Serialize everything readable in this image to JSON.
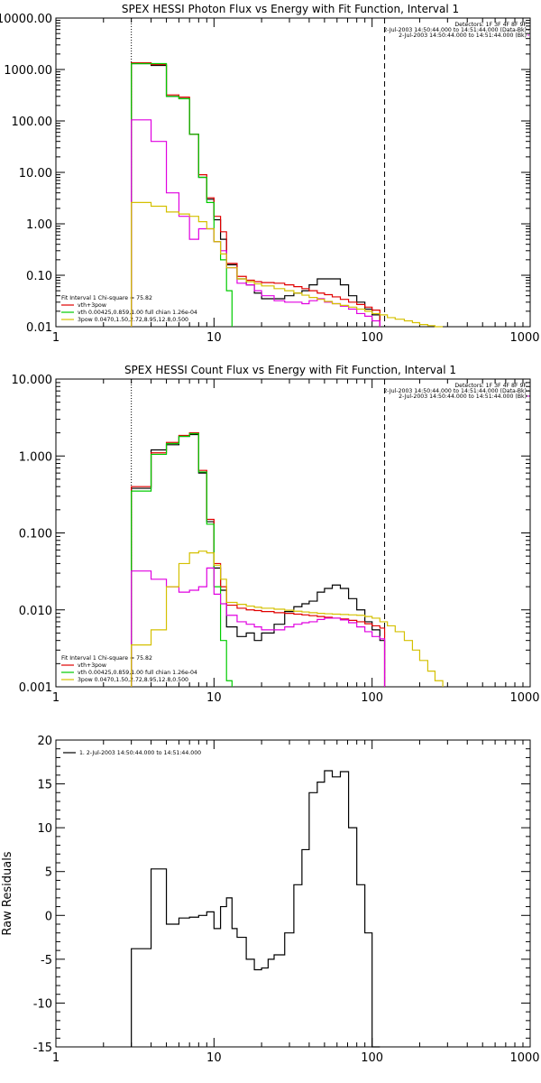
{
  "chart_data": [
    {
      "type": "line",
      "title": "SPEX HESSI Photon Flux vs Energy with Fit Function, Interval 1",
      "xlabel": "",
      "ylabel": "",
      "xscale": "log",
      "yscale": "log",
      "xlim": [
        1,
        1000
      ],
      "ylim": [
        0.01,
        10000
      ],
      "xticks": [
        "1",
        "10",
        "100",
        "1000"
      ],
      "yticks": [
        "0.01",
        "0.10",
        "1.00",
        "10.00",
        "100.00",
        "1000.00",
        "10000.00"
      ],
      "vlines": [
        {
          "x": 3,
          "style": "dotted"
        },
        {
          "x": 120,
          "style": "dashed"
        }
      ],
      "legend_top": [
        "Detectors: 1F 3F 4F 8F 9F",
        "2-Jul-2003 14:50:44.000 to 14:51:44.000 (Data-Bk)",
        "2-Jul-2003 14:50:44.000 to 14:51:44.000 (Bk)"
      ],
      "legend_bottom": [
        "Fit Interval 1   Chi-square = 75.82",
        "vth+3pow",
        "vth 0.00425,0.859,1.00  full chian 1.26e-04",
        "3pow 0.0470,1.50,2.72,8.95,12.8,0.500"
      ],
      "series": [
        {
          "name": "2-Jul-2003 14:50:44.000 to 14:51:44.000 (Data-Bk)",
          "color": "#000000",
          "edges": [
            3,
            4,
            5,
            6,
            7,
            8,
            9,
            10,
            11,
            12,
            14,
            16,
            18,
            20,
            24,
            28,
            32,
            36,
            40,
            45,
            50,
            56,
            63,
            71,
            80,
            90,
            100,
            112
          ],
          "values": [
            1300,
            1200,
            300,
            270,
            55,
            8,
            3,
            1.2,
            0.5,
            0.16,
            0.085,
            0.065,
            0.045,
            0.035,
            0.035,
            0.04,
            0.045,
            0.05,
            0.065,
            0.085,
            0.085,
            0.085,
            0.065,
            0.04,
            0.03,
            0.022,
            0.017
          ]
        },
        {
          "name": "vth+3pow",
          "color": "#e00000",
          "edges": [
            3,
            4,
            5,
            6,
            7,
            8,
            9,
            10,
            11,
            12,
            14,
            16,
            18,
            20,
            24,
            28,
            32,
            36,
            40,
            45,
            50,
            56,
            63,
            71,
            80,
            90,
            100,
            112
          ],
          "values": [
            1350,
            1250,
            320,
            290,
            55,
            9,
            3.2,
            1.4,
            0.7,
            0.17,
            0.095,
            0.08,
            0.075,
            0.072,
            0.07,
            0.065,
            0.06,
            0.055,
            0.05,
            0.045,
            0.042,
            0.038,
            0.034,
            0.03,
            0.027,
            0.024,
            0.021
          ]
        },
        {
          "name": "vth 0.00425,0.859,1.00  full chian 1.26e-04",
          "color": "#00cc00",
          "edges": [
            3,
            4,
            5,
            6,
            7,
            8,
            9,
            10,
            11,
            12,
            13
          ],
          "values": [
            1300,
            1300,
            300,
            270,
            55,
            8,
            2.6,
            0.45,
            0.2,
            0.05
          ]
        },
        {
          "name": "2-Jul-2003 14:50:44.000 to 14:51:44.000 (Bk)",
          "color": "#e000e0",
          "edges": [
            3,
            4,
            5,
            6,
            7,
            8,
            9,
            10,
            11,
            12,
            14,
            16,
            18,
            20,
            24,
            28,
            32,
            36,
            40,
            45,
            50,
            56,
            63,
            71,
            80,
            90,
            100,
            112
          ],
          "values": [
            105,
            40,
            4,
            1.4,
            0.5,
            0.8,
            0.8,
            0.45,
            0.3,
            0.14,
            0.07,
            0.065,
            0.05,
            0.04,
            0.032,
            0.03,
            0.03,
            0.028,
            0.032,
            0.035,
            0.03,
            0.028,
            0.025,
            0.022,
            0.018,
            0.016,
            0.013
          ]
        },
        {
          "name": "3pow 0.0470,1.50,2.72,8.95,12.8,0.500",
          "color": "#d4c000",
          "edges": [
            3,
            4,
            5,
            6,
            7,
            8,
            9,
            10,
            11,
            12,
            14,
            16,
            18,
            20,
            24,
            28,
            32,
            36,
            40,
            45,
            50,
            56,
            63,
            71,
            80,
            90,
            100,
            112,
            125,
            140,
            160,
            180,
            200,
            225,
            250,
            280
          ],
          "values": [
            2.6,
            2.2,
            1.7,
            1.55,
            1.4,
            1.1,
            0.8,
            0.45,
            0.26,
            0.14,
            0.085,
            0.075,
            0.068,
            0.062,
            0.055,
            0.05,
            0.045,
            0.041,
            0.037,
            0.034,
            0.031,
            0.028,
            0.026,
            0.024,
            0.022,
            0.02,
            0.018,
            0.017,
            0.015,
            0.014,
            0.013,
            0.012,
            0.011,
            0.0105,
            0.01
          ]
        }
      ]
    },
    {
      "type": "line",
      "title": "SPEX HESSI Count Flux vs Energy with Fit Function, Interval 1",
      "xlabel": "",
      "ylabel": "",
      "xscale": "log",
      "yscale": "log",
      "xlim": [
        1,
        1000
      ],
      "ylim": [
        0.001,
        10
      ],
      "xticks": [
        "1",
        "10",
        "100",
        "1000"
      ],
      "yticks": [
        "0.001",
        "0.010",
        "0.100",
        "1.000",
        "10.000"
      ],
      "vlines": [
        {
          "x": 3,
          "style": "dotted"
        },
        {
          "x": 120,
          "style": "dashed"
        }
      ],
      "legend_top": [
        "Detectors: 1F 3F 4F 8F 9F",
        "2-Jul-2003 14:50:44.000 to 14:51:44.000 (Data-Bk)",
        "2-Jul-2003 14:50:44.000 to 14:51:44.000 (Bk)"
      ],
      "legend_bottom": [
        "Fit Interval 1   Chi-square = 75.82",
        "vth+3pow",
        "vth 0.00425,0.859,1.00  full chian 1.26e-04",
        "3pow 0.0470,1.50,2.72,8.95,12.8,0.500"
      ],
      "series": [
        {
          "name": "2-Jul-2003 14:50:44.000 to 14:51:44.000 (Data-Bk)",
          "color": "#000000",
          "edges": [
            3,
            4,
            5,
            6,
            7,
            8,
            9,
            10,
            11,
            12,
            14,
            16,
            18,
            20,
            24,
            28,
            32,
            36,
            40,
            45,
            50,
            56,
            63,
            71,
            80,
            90,
            100,
            112,
            120
          ],
          "values": [
            0.38,
            1.2,
            1.4,
            1.8,
            1.9,
            0.6,
            0.14,
            0.035,
            0.018,
            0.006,
            0.0045,
            0.005,
            0.004,
            0.005,
            0.0065,
            0.0095,
            0.011,
            0.012,
            0.013,
            0.017,
            0.019,
            0.021,
            0.019,
            0.014,
            0.01,
            0.007,
            0.0055,
            0.004
          ]
        },
        {
          "name": "vth+3pow",
          "color": "#e00000",
          "edges": [
            3,
            4,
            5,
            6,
            7,
            8,
            9,
            10,
            11,
            12,
            14,
            16,
            18,
            20,
            24,
            28,
            32,
            36,
            40,
            45,
            50,
            56,
            63,
            71,
            80,
            90,
            100,
            112,
            120
          ],
          "values": [
            0.4,
            1.1,
            1.5,
            1.85,
            2,
            0.65,
            0.15,
            0.04,
            0.02,
            0.0115,
            0.0105,
            0.01,
            0.0098,
            0.0095,
            0.0092,
            0.009,
            0.0088,
            0.0086,
            0.0084,
            0.0082,
            0.008,
            0.0078,
            0.0076,
            0.0073,
            0.007,
            0.0066,
            0.0062,
            0.0058
          ]
        },
        {
          "name": "vth 0.00425,0.859,1.00  full chian 1.26e-04",
          "color": "#00cc00",
          "edges": [
            3,
            4,
            5,
            6,
            7,
            8,
            9,
            10,
            11,
            12,
            13
          ],
          "values": [
            0.35,
            1.05,
            1.45,
            1.8,
            1.95,
            0.62,
            0.13,
            0.02,
            0.004,
            0.0012
          ]
        },
        {
          "name": "2-Jul-2003 14:50:44.000 to 14:51:44.000 (Bk)",
          "color": "#e000e0",
          "edges": [
            3,
            4,
            5,
            6,
            7,
            8,
            9,
            10,
            11,
            12,
            14,
            16,
            18,
            20,
            24,
            28,
            32,
            36,
            40,
            45,
            50,
            56,
            63,
            71,
            80,
            90,
            100,
            112,
            120
          ],
          "values": [
            0.032,
            0.025,
            0.02,
            0.017,
            0.018,
            0.02,
            0.035,
            0.016,
            0.012,
            0.0085,
            0.007,
            0.0065,
            0.006,
            0.0055,
            0.0055,
            0.006,
            0.0065,
            0.0068,
            0.007,
            0.0075,
            0.0078,
            0.0078,
            0.0074,
            0.0068,
            0.006,
            0.0052,
            0.0045,
            0.0042
          ]
        },
        {
          "name": "3pow 0.0470,1.50,2.72,8.95,12.8,0.500",
          "color": "#d4c000",
          "edges": [
            3,
            4,
            5,
            6,
            7,
            8,
            9,
            10,
            11,
            12,
            14,
            16,
            18,
            20,
            24,
            28,
            32,
            36,
            40,
            45,
            50,
            56,
            63,
            71,
            80,
            90,
            100,
            112,
            125,
            140,
            160,
            180,
            200,
            225,
            250,
            280
          ],
          "values": [
            0.0035,
            0.0055,
            0.02,
            0.04,
            0.055,
            0.058,
            0.055,
            0.038,
            0.025,
            0.0125,
            0.0118,
            0.0112,
            0.0108,
            0.0105,
            0.0102,
            0.0099,
            0.0096,
            0.0094,
            0.0092,
            0.009,
            0.0089,
            0.0088,
            0.0087,
            0.0086,
            0.0085,
            0.0082,
            0.0078,
            0.007,
            0.0062,
            0.0052,
            0.004,
            0.003,
            0.0022,
            0.0016,
            0.0012
          ]
        }
      ]
    },
    {
      "type": "line",
      "title": "",
      "xlabel": "",
      "ylabel": "Raw Residuals",
      "xscale": "log",
      "yscale": "linear",
      "xlim": [
        1,
        1000
      ],
      "ylim": [
        -15,
        20
      ],
      "xticks": [
        "1",
        "10",
        "100",
        "1000"
      ],
      "yticks": [
        "-15",
        "-10",
        "-5",
        "0",
        "5",
        "10",
        "15",
        "20"
      ],
      "legend": [
        "1.  2-Jul-2003 14:50:44.000 to 14:51:44.000"
      ],
      "series": [
        {
          "name": "1.  2-Jul-2003 14:50:44.000 to 14:51:44.000",
          "color": "#000000",
          "edges": [
            3,
            4,
            5,
            6,
            7,
            8,
            9,
            10,
            11,
            12,
            13,
            14,
            16,
            18,
            20,
            22,
            24,
            28,
            32,
            36,
            40,
            45,
            50,
            56,
            63,
            71,
            80,
            90,
            100,
            112
          ],
          "values": [
            -3.8,
            5.3,
            -1,
            -0.3,
            -0.2,
            0,
            0.4,
            -1.5,
            1,
            2,
            -1.5,
            -2.5,
            -5,
            -6.2,
            -6,
            -5,
            -4.5,
            -2,
            3.5,
            7.5,
            14,
            15.2,
            16.5,
            15.8,
            16.4,
            10,
            3.5,
            -2,
            -15
          ]
        }
      ]
    }
  ]
}
